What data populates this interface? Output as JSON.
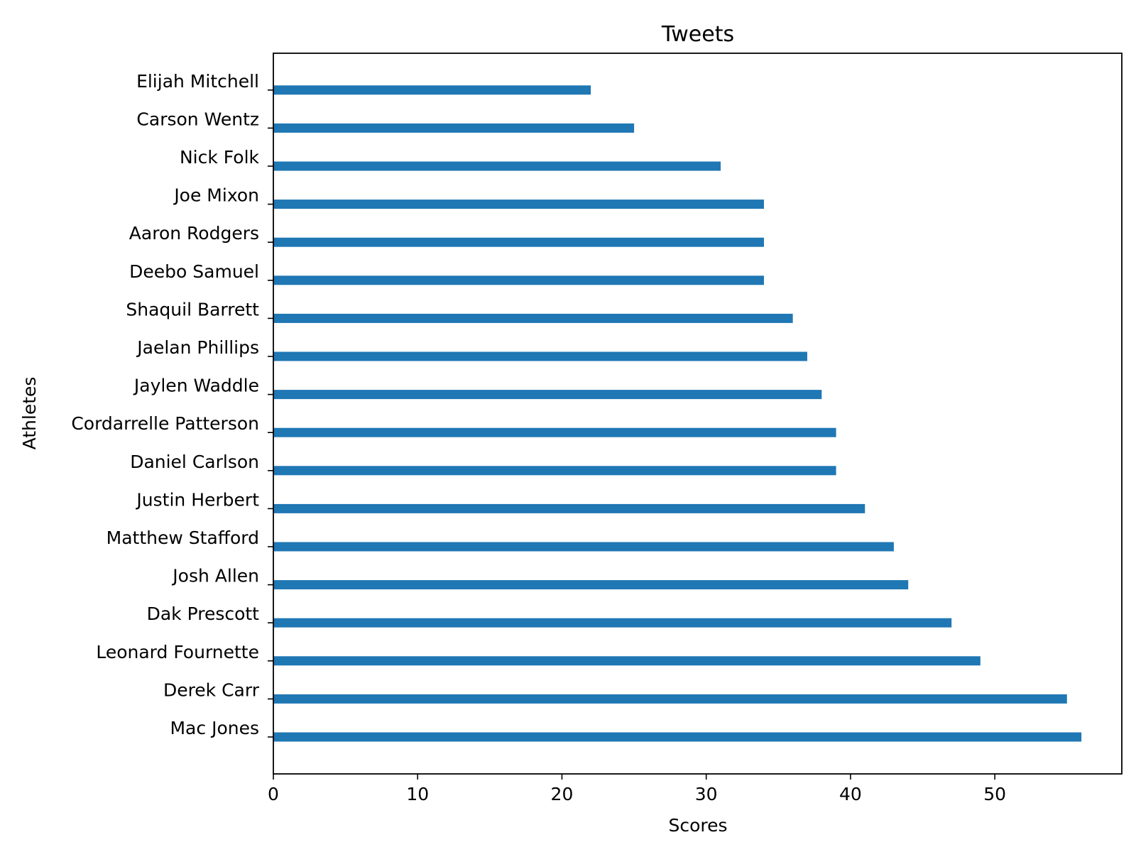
{
  "colors": {
    "bar": "#1f77b4",
    "axis": "#000000",
    "background": "#ffffff"
  },
  "chart_data": {
    "type": "bar",
    "orientation": "horizontal",
    "title": "Tweets",
    "xlabel": "Scores",
    "ylabel": "Athletes",
    "categories": [
      "Mac Jones",
      "Derek Carr",
      "Leonard Fournette",
      "Dak Prescott",
      "Josh Allen",
      "Matthew Stafford",
      "Justin Herbert",
      "Daniel Carlson",
      "Cordarrelle Patterson",
      "Jaylen Waddle",
      "Jaelan Phillips",
      "Shaquil Barrett",
      "Deebo Samuel",
      "Aaron Rodgers",
      "Joe Mixon",
      "Nick Folk",
      "Carson Wentz",
      "Elijah Mitchell"
    ],
    "values": [
      56,
      55,
      49,
      47,
      44,
      43,
      41,
      39,
      39,
      38,
      37,
      36,
      34,
      34,
      34,
      31,
      25,
      22
    ],
    "xlim": [
      0,
      58.8
    ],
    "xticks": [
      0,
      10,
      20,
      30,
      40,
      50
    ],
    "grid": false,
    "legend": "none"
  }
}
